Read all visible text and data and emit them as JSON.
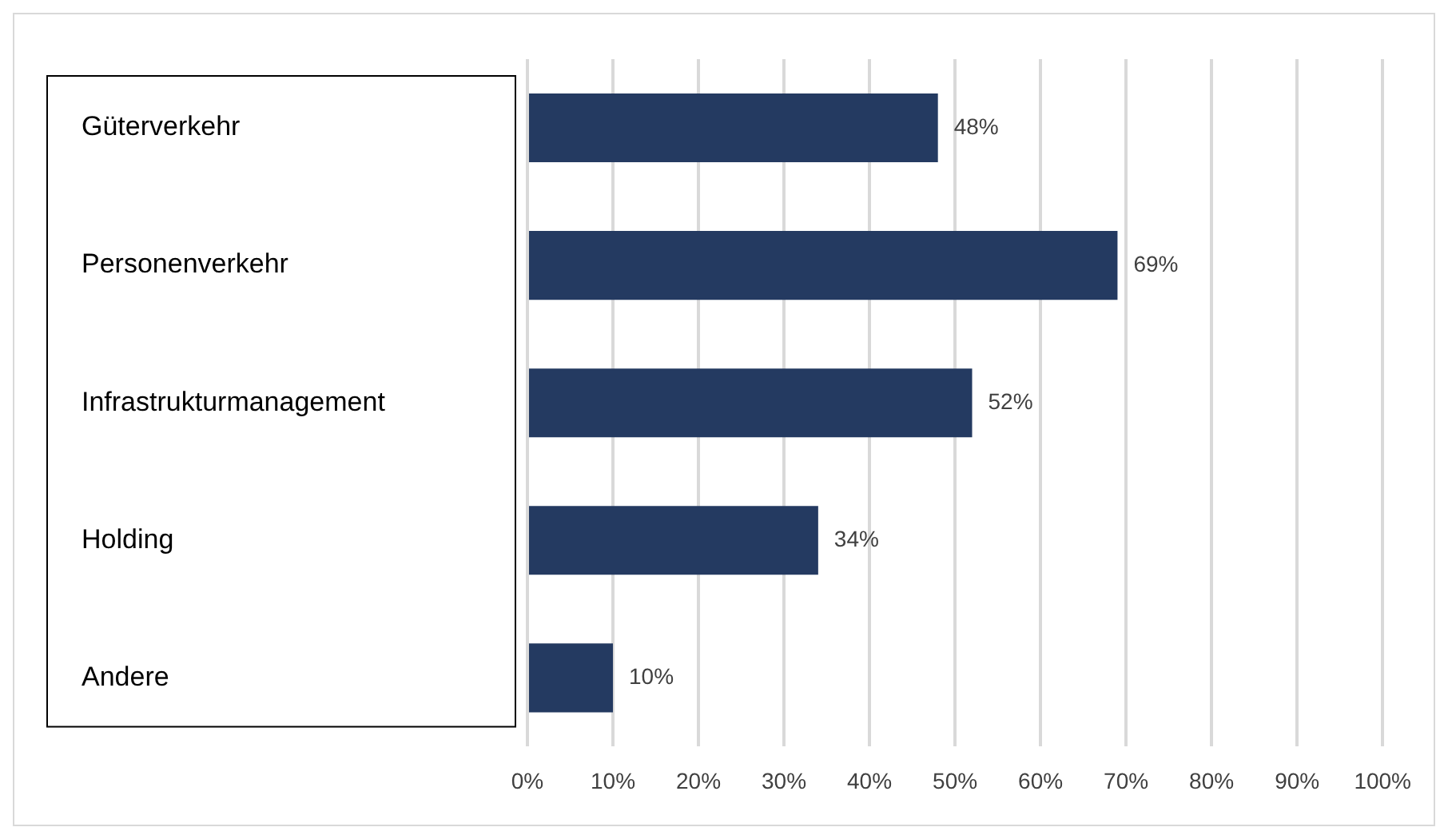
{
  "chart_data": {
    "type": "bar",
    "orientation": "horizontal",
    "categories": [
      "Güterverkehr",
      "Personenverkehr",
      "Infrastrukturmanagement",
      "Holding",
      "Andere"
    ],
    "values": [
      48,
      69,
      52,
      34,
      10
    ],
    "color": "#243a61",
    "value_labels": [
      "48%",
      "69%",
      "52%",
      "34%",
      "10%"
    ],
    "xlim": [
      0,
      100
    ],
    "xticks": [
      {
        "value": 0,
        "label": "0%"
      },
      {
        "value": 10,
        "label": "10%"
      },
      {
        "value": 20,
        "label": "20%"
      },
      {
        "value": 30,
        "label": "30%"
      },
      {
        "value": 40,
        "label": "40%"
      },
      {
        "value": 50,
        "label": "50%"
      },
      {
        "value": 60,
        "label": "60%"
      },
      {
        "value": 70,
        "label": "70%"
      },
      {
        "value": 80,
        "label": "80%"
      },
      {
        "value": 90,
        "label": "90%"
      },
      {
        "value": 100,
        "label": "100%"
      }
    ],
    "grid": "x",
    "legend": false
  }
}
